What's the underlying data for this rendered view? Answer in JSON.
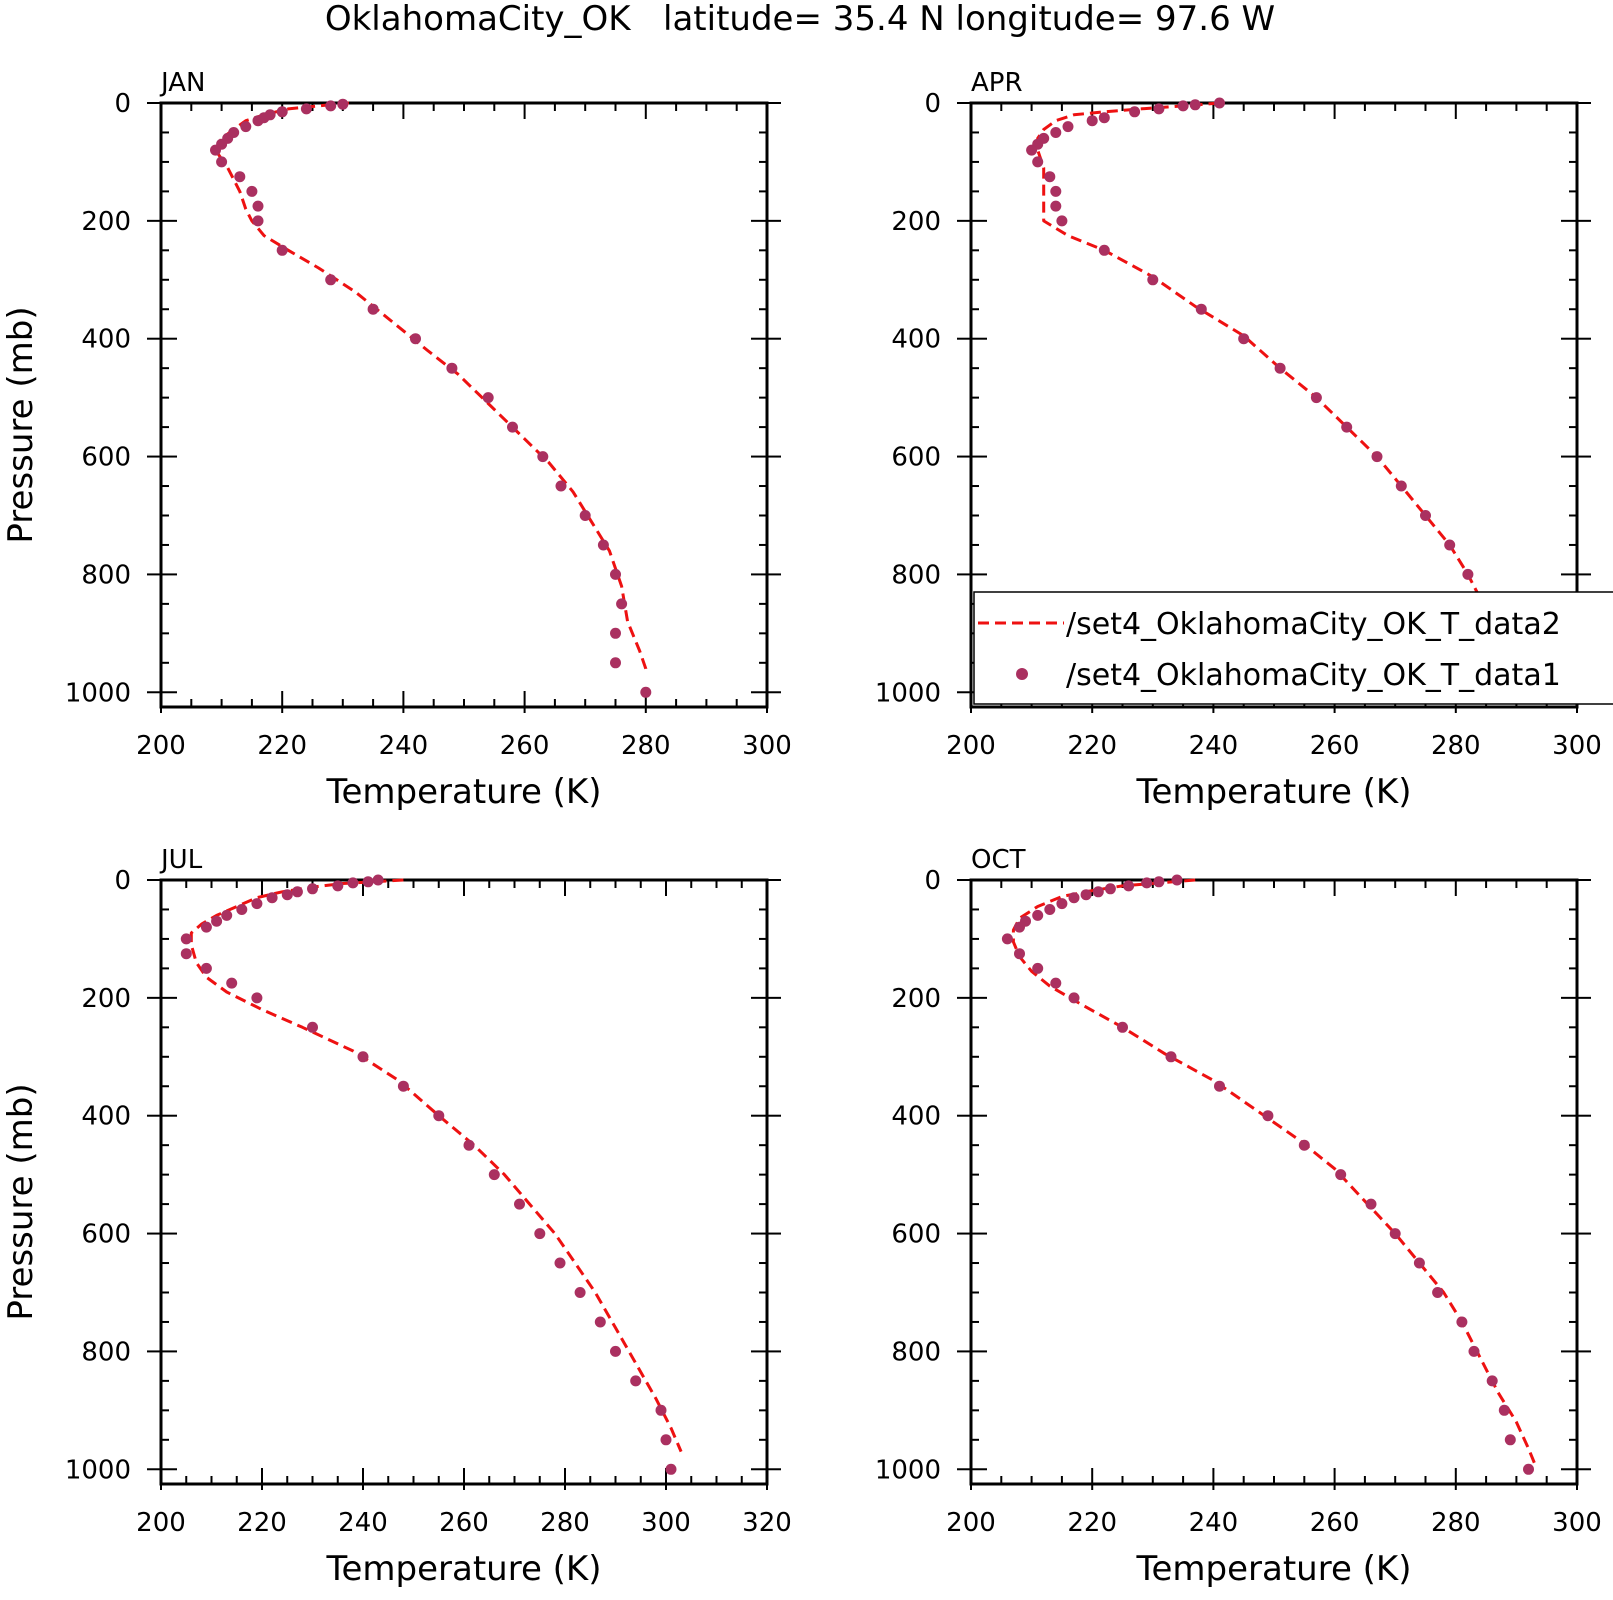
{
  "title": "OklahomaCity_OK   latitude= 35.4 N longitude= 97.6 W",
  "legend": {
    "line_label": "/set4_OklahomaCity_OK_T_data2",
    "dot_label": "/set4_OklahomaCity_OK_T_data1"
  },
  "colors": {
    "line": "#ee1111",
    "dots": "#aa3060",
    "axes": "#000000"
  },
  "chart_data": [
    {
      "type": "scatter",
      "panel": "JAN",
      "xlabel": "Temperature (K)",
      "ylabel": "Pressure (mb)",
      "xlim": [
        200,
        300
      ],
      "ylim": [
        1025,
        0
      ],
      "xticks": [
        200,
        220,
        240,
        260,
        280,
        300
      ],
      "yticks": [
        0,
        200,
        400,
        600,
        800,
        1000
      ],
      "series": [
        {
          "name": "/set4_OklahomaCity_OK_T_data2",
          "style": "dashed-line",
          "points": [
            [
              231,
              0
            ],
            [
              226,
              5
            ],
            [
              221,
              10
            ],
            [
              217,
              20
            ],
            [
              214,
              30
            ],
            [
              212,
              45
            ],
            [
              210,
              60
            ],
            [
              209,
              80
            ],
            [
              210,
              95
            ],
            [
              211,
              110
            ],
            [
              213,
              150
            ],
            [
              214,
              180
            ],
            [
              215,
              200
            ],
            [
              217,
              225
            ],
            [
              221,
              250
            ],
            [
              226,
              280
            ],
            [
              232,
              320
            ],
            [
              238,
              370
            ],
            [
              244,
              420
            ],
            [
              249,
              460
            ],
            [
              254,
              510
            ],
            [
              259,
              560
            ],
            [
              264,
              610
            ],
            [
              268,
              660
            ],
            [
              271,
              710
            ],
            [
              274,
              760
            ],
            [
              276,
              820
            ],
            [
              277,
              880
            ],
            [
              279,
              930
            ],
            [
              280,
              960
            ],
            [
              280,
              970
            ]
          ]
        },
        {
          "name": "/set4_OklahomaCity_OK_T_data1",
          "style": "dots",
          "points": [
            [
              230,
              2
            ],
            [
              228,
              5
            ],
            [
              224,
              10
            ],
            [
              220,
              15
            ],
            [
              218,
              20
            ],
            [
              217,
              25
            ],
            [
              216,
              30
            ],
            [
              214,
              40
            ],
            [
              212,
              50
            ],
            [
              211,
              60
            ],
            [
              210,
              70
            ],
            [
              209,
              80
            ],
            [
              210,
              100
            ],
            [
              213,
              125
            ],
            [
              215,
              150
            ],
            [
              216,
              175
            ],
            [
              216,
              200
            ],
            [
              220,
              250
            ],
            [
              228,
              300
            ],
            [
              235,
              350
            ],
            [
              242,
              400
            ],
            [
              248,
              450
            ],
            [
              254,
              500
            ],
            [
              258,
              550
            ],
            [
              263,
              600
            ],
            [
              266,
              650
            ],
            [
              270,
              700
            ],
            [
              273,
              750
            ],
            [
              275,
              800
            ],
            [
              276,
              850
            ],
            [
              275,
              900
            ],
            [
              275,
              950
            ],
            [
              280,
              1000
            ]
          ]
        }
      ]
    },
    {
      "type": "scatter",
      "panel": "APR",
      "xlabel": "Temperature (K)",
      "ylabel": "",
      "xlim": [
        200,
        300
      ],
      "ylim": [
        1025,
        0
      ],
      "xticks": [
        200,
        220,
        240,
        260,
        280,
        300
      ],
      "yticks": [
        0,
        200,
        400,
        600,
        800,
        1000
      ],
      "series": [
        {
          "name": "/set4_OklahomaCity_OK_T_data2",
          "style": "dashed-line",
          "points": [
            [
              241,
              0
            ],
            [
              235,
              5
            ],
            [
              228,
              10
            ],
            [
              222,
              15
            ],
            [
              217,
              20
            ],
            [
              214,
              30
            ],
            [
              212,
              45
            ],
            [
              211,
              60
            ],
            [
              211,
              80
            ],
            [
              212,
              110
            ],
            [
              212,
              150
            ],
            [
              212,
              175
            ],
            [
              212,
              200
            ],
            [
              216,
              225
            ],
            [
              222,
              250
            ],
            [
              230,
              295
            ],
            [
              237,
              345
            ],
            [
              245,
              395
            ],
            [
              251,
              450
            ],
            [
              257,
              500
            ],
            [
              262,
              550
            ],
            [
              267,
              600
            ],
            [
              271,
              650
            ],
            [
              275,
              700
            ],
            [
              279,
              750
            ],
            [
              282,
              800
            ],
            [
              285,
              860
            ],
            [
              288,
              910
            ],
            [
              291,
              960
            ],
            [
              292,
              990
            ]
          ]
        },
        {
          "name": "/set4_OklahomaCity_OK_T_data1",
          "style": "dots",
          "points": [
            [
              241,
              0
            ],
            [
              237,
              3
            ],
            [
              235,
              5
            ],
            [
              231,
              10
            ],
            [
              227,
              15
            ],
            [
              222,
              25
            ],
            [
              220,
              30
            ],
            [
              216,
              40
            ],
            [
              214,
              50
            ],
            [
              212,
              60
            ],
            [
              211,
              70
            ],
            [
              210,
              80
            ],
            [
              211,
              100
            ],
            [
              213,
              125
            ],
            [
              214,
              150
            ],
            [
              214,
              175
            ],
            [
              215,
              200
            ],
            [
              222,
              250
            ],
            [
              230,
              300
            ],
            [
              238,
              350
            ],
            [
              245,
              400
            ],
            [
              251,
              450
            ],
            [
              257,
              500
            ],
            [
              262,
              550
            ],
            [
              267,
              600
            ],
            [
              271,
              650
            ],
            [
              275,
              700
            ],
            [
              279,
              750
            ],
            [
              282,
              800
            ],
            [
              284,
              850
            ],
            [
              286,
              900
            ],
            [
              289,
              950
            ],
            [
              291,
              1000
            ]
          ]
        }
      ]
    },
    {
      "type": "scatter",
      "panel": "JUL",
      "xlabel": "Temperature (K)",
      "ylabel": "Pressure (mb)",
      "xlim": [
        200,
        320
      ],
      "ylim": [
        1025,
        0
      ],
      "xticks": [
        200,
        220,
        240,
        260,
        280,
        300,
        320
      ],
      "yticks": [
        0,
        200,
        400,
        600,
        800,
        1000
      ],
      "series": [
        {
          "name": "/set4_OklahomaCity_OK_T_data2",
          "style": "dashed-line",
          "points": [
            [
              248,
              0
            ],
            [
              242,
              3
            ],
            [
              236,
              6
            ],
            [
              230,
              12
            ],
            [
              224,
              20
            ],
            [
              219,
              30
            ],
            [
              215,
              45
            ],
            [
              211,
              60
            ],
            [
              208,
              75
            ],
            [
              206,
              90
            ],
            [
              206,
              110
            ],
            [
              207,
              140
            ],
            [
              209,
              165
            ],
            [
              213,
              190
            ],
            [
              220,
              220
            ],
            [
              228,
              250
            ],
            [
              238,
              290
            ],
            [
              247,
              340
            ],
            [
              255,
              400
            ],
            [
              262,
              450
            ],
            [
              268,
              500
            ],
            [
              273,
              550
            ],
            [
              278,
              600
            ],
            [
              282,
              650
            ],
            [
              286,
              700
            ],
            [
              290,
              760
            ],
            [
              294,
              820
            ],
            [
              298,
              880
            ],
            [
              301,
              930
            ],
            [
              303,
              970
            ]
          ]
        },
        {
          "name": "/set4_OklahomaCity_OK_T_data1",
          "style": "dots",
          "points": [
            [
              243,
              0
            ],
            [
              241,
              3
            ],
            [
              238,
              5
            ],
            [
              235,
              10
            ],
            [
              230,
              15
            ],
            [
              227,
              20
            ],
            [
              225,
              25
            ],
            [
              222,
              30
            ],
            [
              219,
              40
            ],
            [
              216,
              50
            ],
            [
              213,
              60
            ],
            [
              211,
              70
            ],
            [
              209,
              80
            ],
            [
              205,
              100
            ],
            [
              205,
              125
            ],
            [
              209,
              150
            ],
            [
              214,
              175
            ],
            [
              219,
              200
            ],
            [
              230,
              250
            ],
            [
              240,
              300
            ],
            [
              248,
              350
            ],
            [
              255,
              400
            ],
            [
              261,
              450
            ],
            [
              266,
              500
            ],
            [
              271,
              550
            ],
            [
              275,
              600
            ],
            [
              279,
              650
            ],
            [
              283,
              700
            ],
            [
              287,
              750
            ],
            [
              290,
              800
            ],
            [
              294,
              850
            ],
            [
              299,
              900
            ],
            [
              300,
              950
            ],
            [
              301,
              1000
            ]
          ]
        }
      ]
    },
    {
      "type": "scatter",
      "panel": "OCT",
      "xlabel": "Temperature (K)",
      "ylabel": "",
      "xlim": [
        200,
        300
      ],
      "ylim": [
        1025,
        0
      ],
      "xticks": [
        200,
        220,
        240,
        260,
        280,
        300
      ],
      "yticks": [
        0,
        200,
        400,
        600,
        800,
        1000
      ],
      "series": [
        {
          "name": "/set4_OklahomaCity_OK_T_data2",
          "style": "dashed-line",
          "points": [
            [
              237,
              0
            ],
            [
              231,
              5
            ],
            [
              225,
              10
            ],
            [
              220,
              18
            ],
            [
              215,
              28
            ],
            [
              211,
              45
            ],
            [
              208,
              65
            ],
            [
              207,
              85
            ],
            [
              207,
              105
            ],
            [
              208,
              130
            ],
            [
              210,
              155
            ],
            [
              213,
              180
            ],
            [
              218,
              210
            ],
            [
              225,
              250
            ],
            [
              232,
              295
            ],
            [
              240,
              340
            ],
            [
              247,
              390
            ],
            [
              254,
              440
            ],
            [
              260,
              490
            ],
            [
              265,
              545
            ],
            [
              270,
              600
            ],
            [
              274,
              650
            ],
            [
              278,
              700
            ],
            [
              281,
              750
            ],
            [
              284,
              810
            ],
            [
              287,
              870
            ],
            [
              290,
              920
            ],
            [
              292,
              965
            ],
            [
              293,
              990
            ]
          ]
        },
        {
          "name": "/set4_OklahomaCity_OK_T_data1",
          "style": "dots",
          "points": [
            [
              234,
              0
            ],
            [
              231,
              3
            ],
            [
              229,
              5
            ],
            [
              226,
              10
            ],
            [
              223,
              15
            ],
            [
              221,
              20
            ],
            [
              219,
              25
            ],
            [
              217,
              30
            ],
            [
              215,
              40
            ],
            [
              213,
              50
            ],
            [
              211,
              60
            ],
            [
              209,
              70
            ],
            [
              208,
              80
            ],
            [
              206,
              100
            ],
            [
              208,
              125
            ],
            [
              211,
              150
            ],
            [
              214,
              175
            ],
            [
              217,
              200
            ],
            [
              225,
              250
            ],
            [
              233,
              300
            ],
            [
              241,
              350
            ],
            [
              249,
              400
            ],
            [
              255,
              450
            ],
            [
              261,
              500
            ],
            [
              266,
              550
            ],
            [
              270,
              600
            ],
            [
              274,
              650
            ],
            [
              277,
              700
            ],
            [
              281,
              750
            ],
            [
              283,
              800
            ],
            [
              286,
              850
            ],
            [
              288,
              900
            ],
            [
              289,
              950
            ],
            [
              292,
              1000
            ]
          ]
        }
      ]
    }
  ]
}
